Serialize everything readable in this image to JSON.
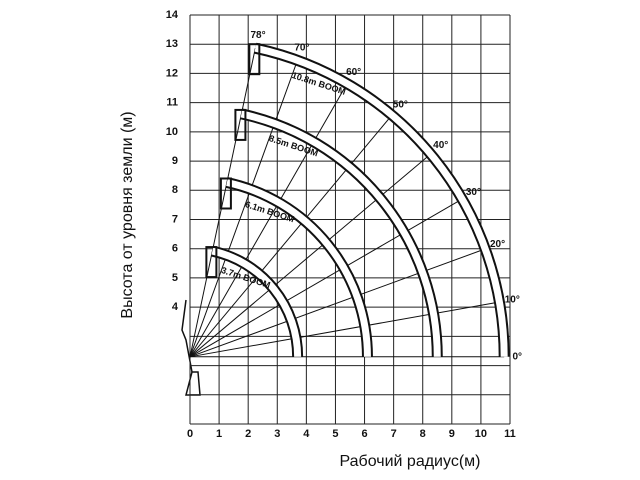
{
  "chart_data": {
    "type": "working-range",
    "xlabel": "Рабочий радиус(м)",
    "ylabel": "Высота от уровня земли (м)",
    "xlim": [
      0,
      11
    ],
    "ylim": [
      0,
      14
    ],
    "xticks": [
      0,
      1,
      2,
      3,
      4,
      5,
      6,
      7,
      8,
      9,
      10,
      11
    ],
    "yticks": [
      4,
      5,
      6,
      7,
      8,
      9,
      10,
      11,
      12,
      13,
      14
    ],
    "grid": true,
    "booms": [
      {
        "label": "10.8m BOOM",
        "length": 10.8
      },
      {
        "label": "8.5m BOOM",
        "length": 8.5
      },
      {
        "label": "6.1m BOOM",
        "length": 6.1
      },
      {
        "label": "3.7m BOOM",
        "length": 3.7
      }
    ],
    "angles": [
      {
        "value": 78,
        "label": "78°"
      },
      {
        "value": 70,
        "label": "70°"
      },
      {
        "value": 60,
        "label": "60°"
      },
      {
        "value": 50,
        "label": "50°"
      },
      {
        "value": 40,
        "label": "40°"
      },
      {
        "value": 30,
        "label": "30°"
      },
      {
        "value": 20,
        "label": "20°"
      },
      {
        "value": 10,
        "label": "10°"
      },
      {
        "value": 0,
        "label": "0°"
      }
    ]
  }
}
